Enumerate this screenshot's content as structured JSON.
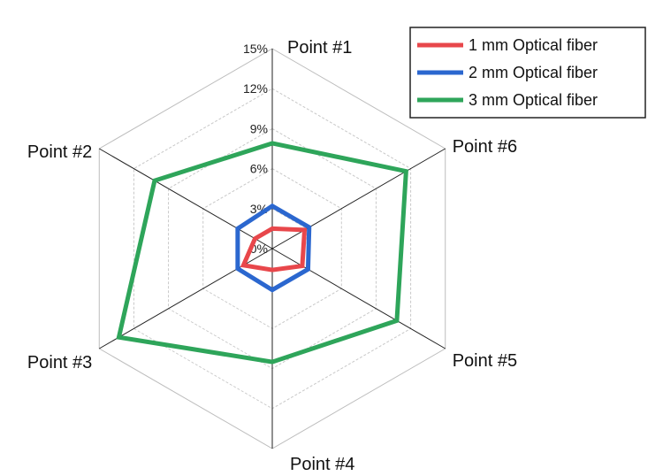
{
  "chart_data": {
    "type": "radar",
    "categories": [
      "Point #1",
      "Point #6",
      "Point #5",
      "Point #4",
      "Point #3",
      "Point #2"
    ],
    "radial_ticks": [
      "0%",
      "3%",
      "6%",
      "9%",
      "12%",
      "15%"
    ],
    "rmax": 15,
    "grid": true,
    "legend_position": "top-right",
    "series": [
      {
        "name": "1 mm Optical fiber",
        "color": "#e8474b",
        "values": [
          1.5,
          2.8,
          2.6,
          1.6,
          2.5,
          1.5
        ]
      },
      {
        "name": "2 mm Optical fiber",
        "color": "#2b67cf",
        "values": [
          3.2,
          3.2,
          3.1,
          3.1,
          3.0,
          3.0
        ]
      },
      {
        "name": "3 mm Optical fiber",
        "color": "#2ea55a",
        "values": [
          7.9,
          11.6,
          10.8,
          8.5,
          13.3,
          10.2
        ]
      }
    ]
  }
}
